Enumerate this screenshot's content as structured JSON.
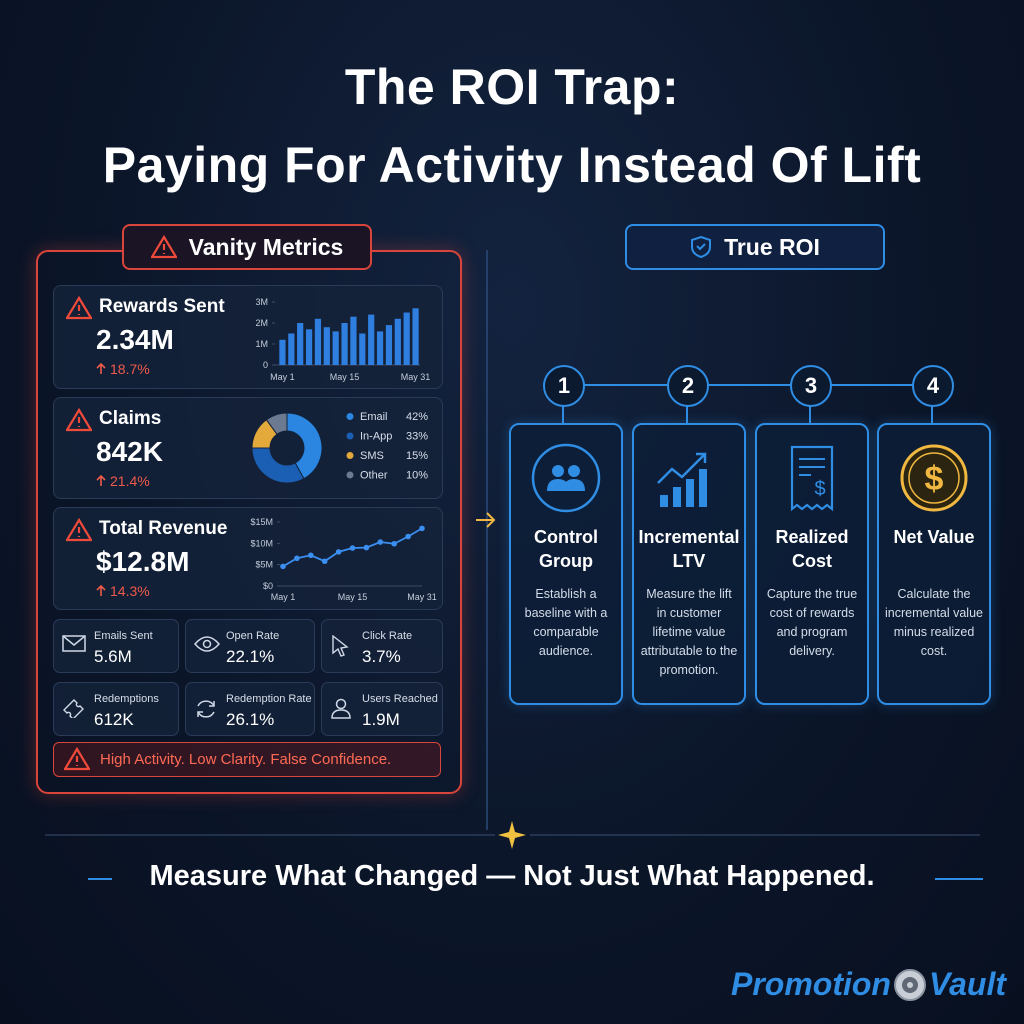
{
  "header": {
    "line1": "The ROI Trap:",
    "line2": "Paying For Activity Instead Of Lift"
  },
  "left_panel": {
    "badge": "Vanity Metrics",
    "cards": [
      {
        "label": "Rewards Sent",
        "value": "2.34M",
        "change": "18.7%"
      },
      {
        "label": "Claims",
        "value": "842K",
        "change": "21.4%"
      },
      {
        "label": "Total Revenue",
        "value": "$12.8M",
        "change": "14.3%"
      }
    ],
    "tiles": [
      {
        "label": "Emails Sent",
        "value": "5.6M"
      },
      {
        "label": "Open Rate",
        "value": "22.1%"
      },
      {
        "label": "Click Rate",
        "value": "3.7%"
      },
      {
        "label": "Redemptions",
        "value": "612K"
      },
      {
        "label": "Redemption Rate",
        "value": "26.1%"
      },
      {
        "label": "Users Reached",
        "value": "1.9M"
      }
    ],
    "warning": "High Activity. Low Clarity. False Confidence."
  },
  "right_panel": {
    "badge": "True ROI",
    "steps": [
      {
        "number": "1",
        "title": "Control Group",
        "description": "Establish a baseline with a comparable audience."
      },
      {
        "number": "2",
        "title": "Incremental LTV",
        "description": "Measure the lift in customer lifetime value attributable to the promotion."
      },
      {
        "number": "3",
        "title": "Realized Cost",
        "description": "Capture the true cost of rewards and program delivery."
      },
      {
        "number": "4",
        "title": "Net Value",
        "description": "Calculate the incremental value minus realized cost."
      }
    ]
  },
  "footer": {
    "tagline": "Measure What Changed — Not Just What Happened."
  },
  "brand": {
    "left": "Promotion",
    "right": "Vault"
  },
  "chart_data": [
    {
      "type": "bar",
      "color": "#2f7fe0",
      "categories": [
        "May 1",
        null,
        null,
        null,
        null,
        null,
        null,
        "May 15",
        null,
        null,
        null,
        null,
        null,
        null,
        null,
        "May 31"
      ],
      "values": [
        1200000,
        1500000,
        2000000,
        1700000,
        2200000,
        1800000,
        1600000,
        2000000,
        2300000,
        1500000,
        2400000,
        1600000,
        1900000,
        2200000,
        2500000,
        2700000
      ],
      "ylim": [
        0,
        3000000
      ],
      "yticks": [
        0,
        {
          "value": 1000000,
          "label": "1M"
        },
        {
          "value": 2000000,
          "label": "2M"
        },
        {
          "value": 3000000,
          "label": "3M"
        }
      ]
    },
    {
      "type": "pie",
      "categories": [
        "Email",
        "In-App",
        "SMS",
        "Other"
      ],
      "values": [
        42,
        33,
        15,
        10
      ],
      "value_labels": [
        "42%",
        "33%",
        "15%",
        "10%"
      ],
      "colors": [
        "#2a86e0",
        "#1b5fb5",
        "#e3a93a",
        "#6b7a90"
      ]
    },
    {
      "type": "line",
      "color": "#3a8ff0",
      "categories": [
        "May 1",
        null,
        null,
        null,
        null,
        "May 15",
        null,
        null,
        null,
        null,
        "May 31"
      ],
      "values": [
        4600000,
        6500000,
        7200000,
        5800000,
        8000000,
        8900000,
        9000000,
        10300000,
        9900000,
        11600000,
        13500000
      ],
      "ylim": [
        0,
        15000000
      ],
      "yticks": [
        {
          "value": 0,
          "label": "$0"
        },
        {
          "value": 5000000,
          "label": "$5M"
        },
        {
          "value": 10000000,
          "label": "$10M"
        },
        {
          "value": 15000000,
          "label": "$15M"
        }
      ]
    }
  ]
}
